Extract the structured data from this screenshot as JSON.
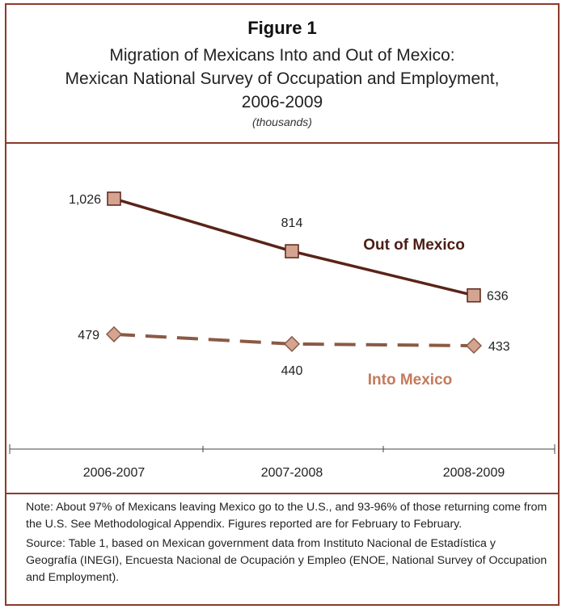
{
  "figure_label": "Figure 1",
  "title_lines": [
    "Migration of Mexicans Into and Out of Mexico:",
    "Mexican National Survey of Occupation and Employment,",
    "2006-2009"
  ],
  "units": "(thousands)",
  "note": "Note:  About 97% of Mexicans leaving Mexico go to the U.S., and 93-96% of those returning come from the U.S. See Methodological Appendix. Figures reported are for February to February.",
  "source": "Source: Table 1, based on Mexican government data from Instituto Nacional de Estadística y Geografía (INEGI), Encuesta Nacional de Ocupación y Empleo (ENOE, National Survey of Occupation and Employment).",
  "colors": {
    "frame": "#8b3a2c",
    "out_line": "#5a2318",
    "into_line": "#8a5a44",
    "marker_fill": "#d4a491",
    "out_label": "#4a1e14",
    "into_label": "#c47a5c"
  },
  "chart_data": {
    "type": "line",
    "categories": [
      "2006-2007",
      "2007-2008",
      "2008-2009"
    ],
    "series": [
      {
        "name": "Out of Mexico",
        "values": [
          1026,
          814,
          636
        ],
        "value_labels": [
          "1,026",
          "814",
          "636"
        ],
        "marker": "square",
        "style": "solid"
      },
      {
        "name": "Into Mexico",
        "values": [
          479,
          440,
          433
        ],
        "value_labels": [
          "479",
          "440",
          "433"
        ],
        "marker": "diamond",
        "style": "dashed"
      }
    ],
    "ylim": [
      0,
      1100
    ],
    "grid": false,
    "legend": "inline labels"
  }
}
